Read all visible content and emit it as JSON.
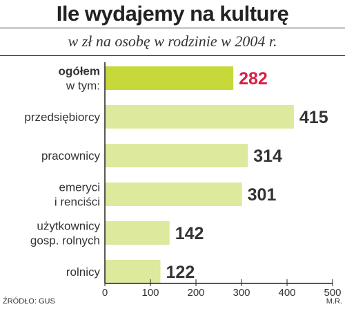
{
  "header": {
    "title": "Ile wydajemy na kulturę",
    "subtitle": "w zł na osobę w rodzinie w 2004 r."
  },
  "footer": {
    "source": "ŹRÓDŁO: GUS",
    "author": "M.R."
  },
  "colors": {
    "highlight_bar": "#c6d83a",
    "bar": "#dde99c",
    "highlight_value": "#d81e45",
    "value": "#333333",
    "axis": "#222222"
  },
  "chart_data": {
    "type": "bar",
    "orientation": "horizontal",
    "title": "Ile wydajemy na kulturę",
    "subtitle": "w zł na osobę w rodzinie w 2004 r.",
    "categories": [
      [
        "ogółem",
        "w tym:"
      ],
      [
        "przedsiębiorcy"
      ],
      [
        "pracownicy"
      ],
      [
        "emeryci",
        "i renciści"
      ],
      [
        "użytkownicy",
        "gosp. rolnych"
      ],
      [
        "rolnicy"
      ]
    ],
    "values": [
      282,
      415,
      314,
      301,
      142,
      122
    ],
    "highlight_index": 0,
    "xlim": [
      0,
      500
    ],
    "xticks": [
      0,
      100,
      200,
      300,
      400,
      500
    ],
    "grid": false,
    "legend": "none"
  }
}
